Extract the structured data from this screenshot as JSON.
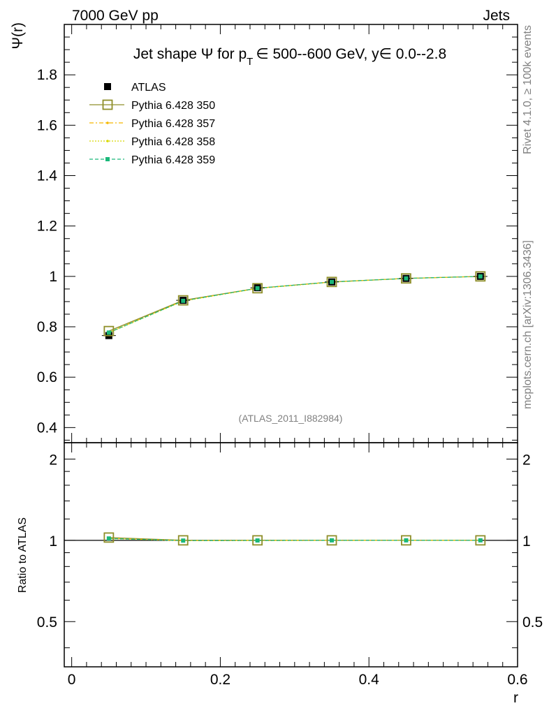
{
  "chart_data": {
    "type": "line",
    "header_left": "7000 GeV pp",
    "header_right": "Jets",
    "title_prefix": "Jet shape Ψ for p",
    "title_subscript": "T",
    "title_suffix": "∈ 500--600 GeV, y∈ 0.0--2.8",
    "ylabel": "Ψ(r)",
    "xlabel": "r",
    "ratio_ylabel": "Ratio to ATLAS",
    "watermark": "(ATLAS_2011_I882984)",
    "side_label_top": "Rivet 4.1.0, ≥ 100k events",
    "side_label_bottom": "mcplots.cern.ch [arXiv:1306.3436]",
    "xlim": [
      -0.01,
      0.6
    ],
    "ylim": [
      0.34,
      2.0
    ],
    "ratio_ylim": [
      0.34,
      2.3
    ],
    "x_ticks": [
      "0",
      "0.2",
      "0.4",
      "0.6"
    ],
    "y_ticks": [
      "0.4",
      "0.6",
      "0.8",
      "1",
      "1.2",
      "1.4",
      "1.6",
      "1.8"
    ],
    "ratio_ticks": [
      "0.5",
      "1",
      "2"
    ],
    "x": [
      0.05,
      0.15,
      0.25,
      0.35,
      0.45,
      0.55
    ],
    "series": [
      {
        "name": "ATLAS",
        "color": "#000000",
        "values": [
          0.765,
          0.905,
          0.955,
          0.978,
          0.992,
          1.0
        ],
        "ratio": [
          1.0,
          1.0,
          1.0,
          1.0,
          1.0,
          1.0
        ]
      },
      {
        "name": "Pythia 6.428 350",
        "color": "#8f8f2a",
        "values": [
          0.783,
          0.905,
          0.953,
          0.978,
          0.992,
          1.0
        ],
        "ratio": [
          1.024,
          1.0,
          1.0,
          1.0,
          1.0,
          1.0
        ]
      },
      {
        "name": "Pythia 6.428 357",
        "color": "#f5b800",
        "values": [
          0.778,
          0.903,
          0.953,
          0.978,
          0.992,
          1.0
        ],
        "ratio": [
          1.018,
          0.998,
          1.0,
          1.0,
          1.0,
          1.0
        ]
      },
      {
        "name": "Pythia 6.428 358",
        "color": "#d8d800",
        "values": [
          0.776,
          0.902,
          0.952,
          0.977,
          0.992,
          1.0
        ],
        "ratio": [
          1.015,
          0.997,
          0.998,
          0.999,
          1.0,
          1.0
        ]
      },
      {
        "name": "Pythia 6.428 359",
        "color": "#1ab87a",
        "values": [
          0.777,
          0.903,
          0.953,
          0.978,
          0.992,
          1.0
        ],
        "ratio": [
          1.016,
          0.998,
          0.999,
          1.0,
          1.0,
          1.0
        ]
      }
    ]
  }
}
